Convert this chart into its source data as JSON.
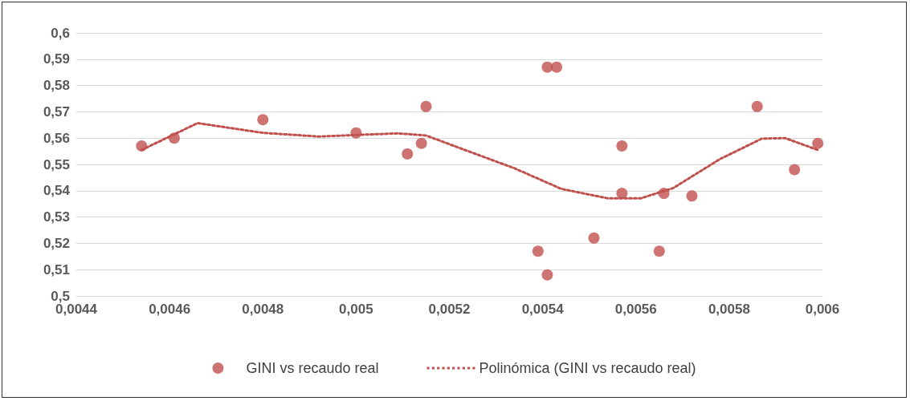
{
  "chart_data": {
    "type": "scatter",
    "marker": "circle",
    "grid": "y",
    "legend": "bottom",
    "xlim": [
      0.0044,
      0.006
    ],
    "ylim": [
      0.5,
      0.6
    ],
    "xticks": [
      {
        "value": 0.0044,
        "label": "0,0044"
      },
      {
        "value": 0.0046,
        "label": "0,0046"
      },
      {
        "value": 0.0048,
        "label": "0,0048"
      },
      {
        "value": 0.005,
        "label": "0,005"
      },
      {
        "value": 0.0052,
        "label": "0,0052"
      },
      {
        "value": 0.0054,
        "label": "0,0054"
      },
      {
        "value": 0.0056,
        "label": "0,0056"
      },
      {
        "value": 0.0058,
        "label": "0,0058"
      },
      {
        "value": 0.006,
        "label": "0,006"
      }
    ],
    "yticks": [
      {
        "value": 0.5,
        "label": "0,5"
      },
      {
        "value": 0.51,
        "label": "0,51"
      },
      {
        "value": 0.52,
        "label": "0,52"
      },
      {
        "value": 0.53,
        "label": "0,53"
      },
      {
        "value": 0.54,
        "label": "0,54"
      },
      {
        "value": 0.55,
        "label": "0,55"
      },
      {
        "value": 0.56,
        "label": "0,56"
      },
      {
        "value": 0.57,
        "label": "0,57"
      },
      {
        "value": 0.58,
        "label": "0,58"
      },
      {
        "value": 0.59,
        "label": "0,59"
      },
      {
        "value": 0.6,
        "label": "0,6"
      }
    ],
    "series": [
      {
        "name": "GINI vs recaudo real",
        "color": "#c0504d",
        "x": [
          0.00454,
          0.00461,
          0.0048,
          0.005,
          0.00511,
          0.00514,
          0.00515,
          0.00539,
          0.00541,
          0.00541,
          0.00543,
          0.00551,
          0.00557,
          0.00557,
          0.00565,
          0.00566,
          0.00572,
          0.00586,
          0.00594,
          0.00599
        ],
        "values": [
          0.557,
          0.56,
          0.567,
          0.562,
          0.554,
          0.558,
          0.572,
          0.517,
          0.508,
          0.587,
          0.587,
          0.522,
          0.557,
          0.539,
          0.517,
          0.539,
          0.538,
          0.572,
          0.548,
          0.558
        ]
      },
      {
        "name": "Polinómica (GINI vs recaudo real)",
        "type": "line",
        "marker": "none",
        "line_style": "dotted",
        "color": "#c0504d",
        "x": [
          0.00454,
          0.00466,
          0.0048,
          0.00492,
          0.005,
          0.00509,
          0.00515,
          0.00523,
          0.00534,
          0.00544,
          0.00554,
          0.00561,
          0.00568,
          0.00578,
          0.00587,
          0.00592,
          0.00599
        ],
        "values": [
          0.5555,
          0.5657,
          0.562,
          0.5606,
          0.5612,
          0.5618,
          0.561,
          0.5557,
          0.5485,
          0.5407,
          0.5371,
          0.5371,
          0.541,
          0.552,
          0.5598,
          0.56,
          0.5555
        ]
      }
    ]
  }
}
